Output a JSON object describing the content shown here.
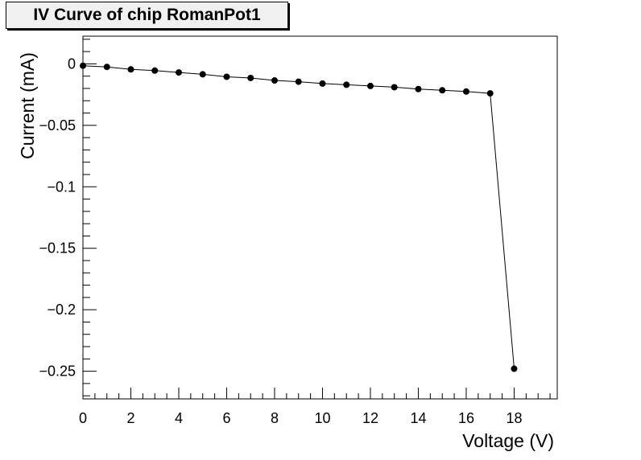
{
  "chart_data": {
    "type": "scatter",
    "title": "IV Curve of chip RomanPot1",
    "xlabel": "Voltage (V)",
    "ylabel": "Current (mA)",
    "xlim": [
      0,
      19.8
    ],
    "ylim": [
      -0.2725,
      0.0225
    ],
    "x_ticks": [
      0,
      2,
      4,
      6,
      8,
      10,
      12,
      14,
      16,
      18
    ],
    "x_tick_labels": [
      "0",
      "2",
      "4",
      "6",
      "8",
      "10",
      "12",
      "14",
      "16",
      "18"
    ],
    "y_ticks": [
      0,
      -0.05,
      -0.1,
      -0.15,
      -0.2,
      -0.25
    ],
    "y_tick_labels": [
      "0",
      "−0.05",
      "−0.1",
      "−0.15",
      "−0.2",
      "−0.25"
    ],
    "grid": false,
    "connected": true,
    "series": [
      {
        "x": [
          0,
          1,
          2,
          3,
          4,
          5,
          6,
          7,
          8,
          9,
          10,
          11,
          12,
          13,
          14,
          15,
          16,
          17,
          18
        ],
        "y": [
          -0.0015,
          -0.0025,
          -0.0045,
          -0.0055,
          -0.007,
          -0.0085,
          -0.0105,
          -0.0115,
          -0.0135,
          -0.0145,
          -0.016,
          -0.017,
          -0.018,
          -0.019,
          -0.0205,
          -0.0215,
          -0.0225,
          -0.024,
          -0.248
        ]
      }
    ]
  }
}
